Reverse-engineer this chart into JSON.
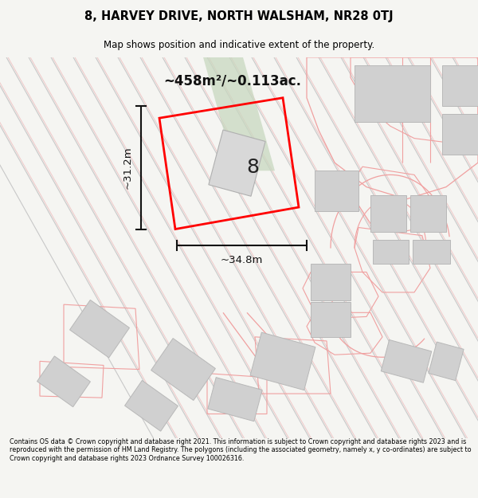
{
  "title_line1": "8, HARVEY DRIVE, NORTH WALSHAM, NR28 0TJ",
  "title_line2": "Map shows position and indicative extent of the property.",
  "area_label": "~458m²/~0.113ac.",
  "width_label": "~34.8m",
  "height_label": "~31.2m",
  "plot_number": "8",
  "footer_text": "Contains OS data © Crown copyright and database right 2021. This information is subject to Crown copyright and database rights 2023 and is reproduced with the permission of HM Land Registry. The polygons (including the associated geometry, namely x, y co-ordinates) are subject to Crown copyright and database rights 2023 Ordnance Survey 100026316.",
  "figsize": [
    6.0,
    6.25
  ],
  "dpi": 100,
  "map_bg": "#ffffff",
  "fig_bg": "#f5f5f2",
  "road_stripe_color": "#c8c8c8",
  "pink_edge": "#f0a0a0",
  "gray_fill": "#d0d0d0",
  "gray_edge": "#b8b8b8",
  "green_fill": "#c8d8c0",
  "red_plot": "#ff0000",
  "dim_color": "#111111"
}
